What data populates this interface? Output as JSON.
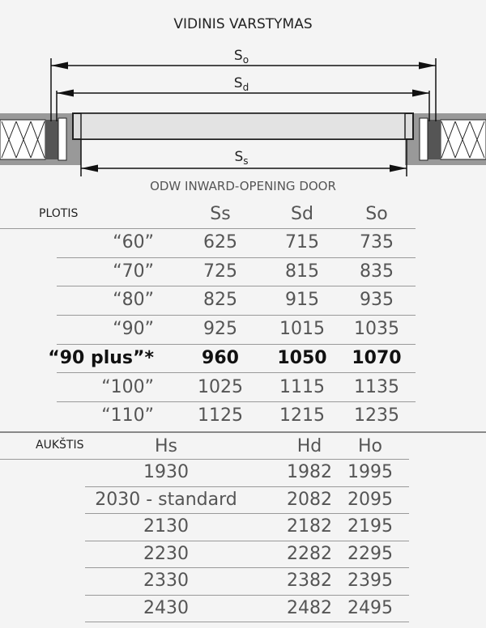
{
  "title": "VIDINIS VARSTYMAS",
  "diagram": {
    "labels": {
      "so": "S",
      "so_sub": "o",
      "sd": "S",
      "sd_sub": "d",
      "ss": "S",
      "ss_sub": "s"
    },
    "subtitle": "ODW INWARD-OPENING DOOR"
  },
  "width_table": {
    "header": "PLOTIS",
    "columns": [
      "Ss",
      "Sd",
      "So"
    ],
    "rows": [
      {
        "label": "“60”",
        "values": [
          "625",
          "715",
          "735"
        ]
      },
      {
        "label": "“70”",
        "values": [
          "725",
          "815",
          "835"
        ]
      },
      {
        "label": "“80”",
        "values": [
          "825",
          "915",
          "935"
        ]
      },
      {
        "label": "“90”",
        "values": [
          "925",
          "1015",
          "1035"
        ]
      },
      {
        "label": "“90 plus”*",
        "values": [
          "960",
          "1050",
          "1070"
        ],
        "bold": true
      },
      {
        "label": "“100”",
        "values": [
          "1025",
          "1115",
          "1135"
        ]
      },
      {
        "label": "“110”",
        "values": [
          "1125",
          "1215",
          "1235"
        ]
      }
    ]
  },
  "height_table": {
    "header": "AUKŠTIS",
    "columns": [
      "Hs",
      "Hd",
      "Ho"
    ],
    "rows": [
      {
        "values": [
          "1930",
          "1982",
          "1995"
        ]
      },
      {
        "values": [
          "2030 - standard",
          "2082",
          "2095"
        ]
      },
      {
        "values": [
          "2130",
          "2182",
          "2195"
        ]
      },
      {
        "values": [
          "2230",
          "2282",
          "2295"
        ]
      },
      {
        "values": [
          "2330",
          "2382",
          "2395"
        ]
      },
      {
        "values": [
          "2430",
          "2482",
          "2495"
        ]
      }
    ]
  }
}
